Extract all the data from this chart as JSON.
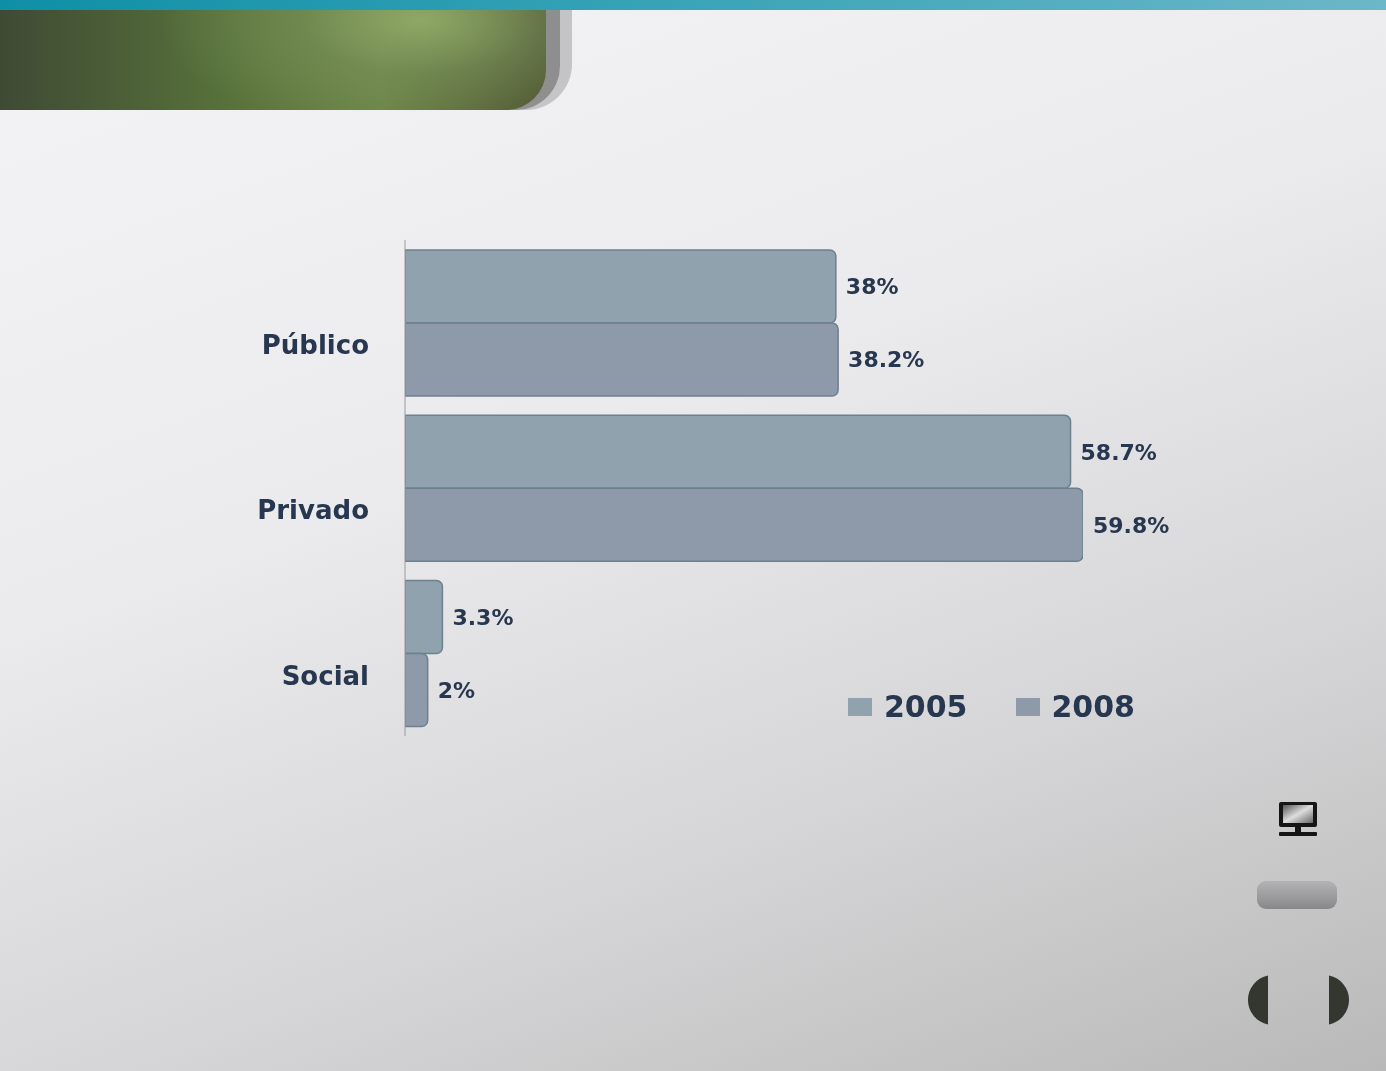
{
  "chart_data": {
    "type": "bar",
    "orientation": "horizontal",
    "categories": [
      "Público",
      "Privado",
      "Social"
    ],
    "series": [
      {
        "name": "2005",
        "color": "#8fa2ae",
        "values": [
          38,
          58.7,
          3.3
        ],
        "value_labels": [
          "38%",
          "58.7%",
          "3.3%"
        ]
      },
      {
        "name": "2008",
        "color": "#8e99aa",
        "values": [
          38.2,
          59.8,
          2
        ],
        "value_labels": [
          "38.2%",
          "59.8%",
          "2%"
        ]
      }
    ],
    "legend": "bottom right",
    "tick_labels": "y"
  }
}
